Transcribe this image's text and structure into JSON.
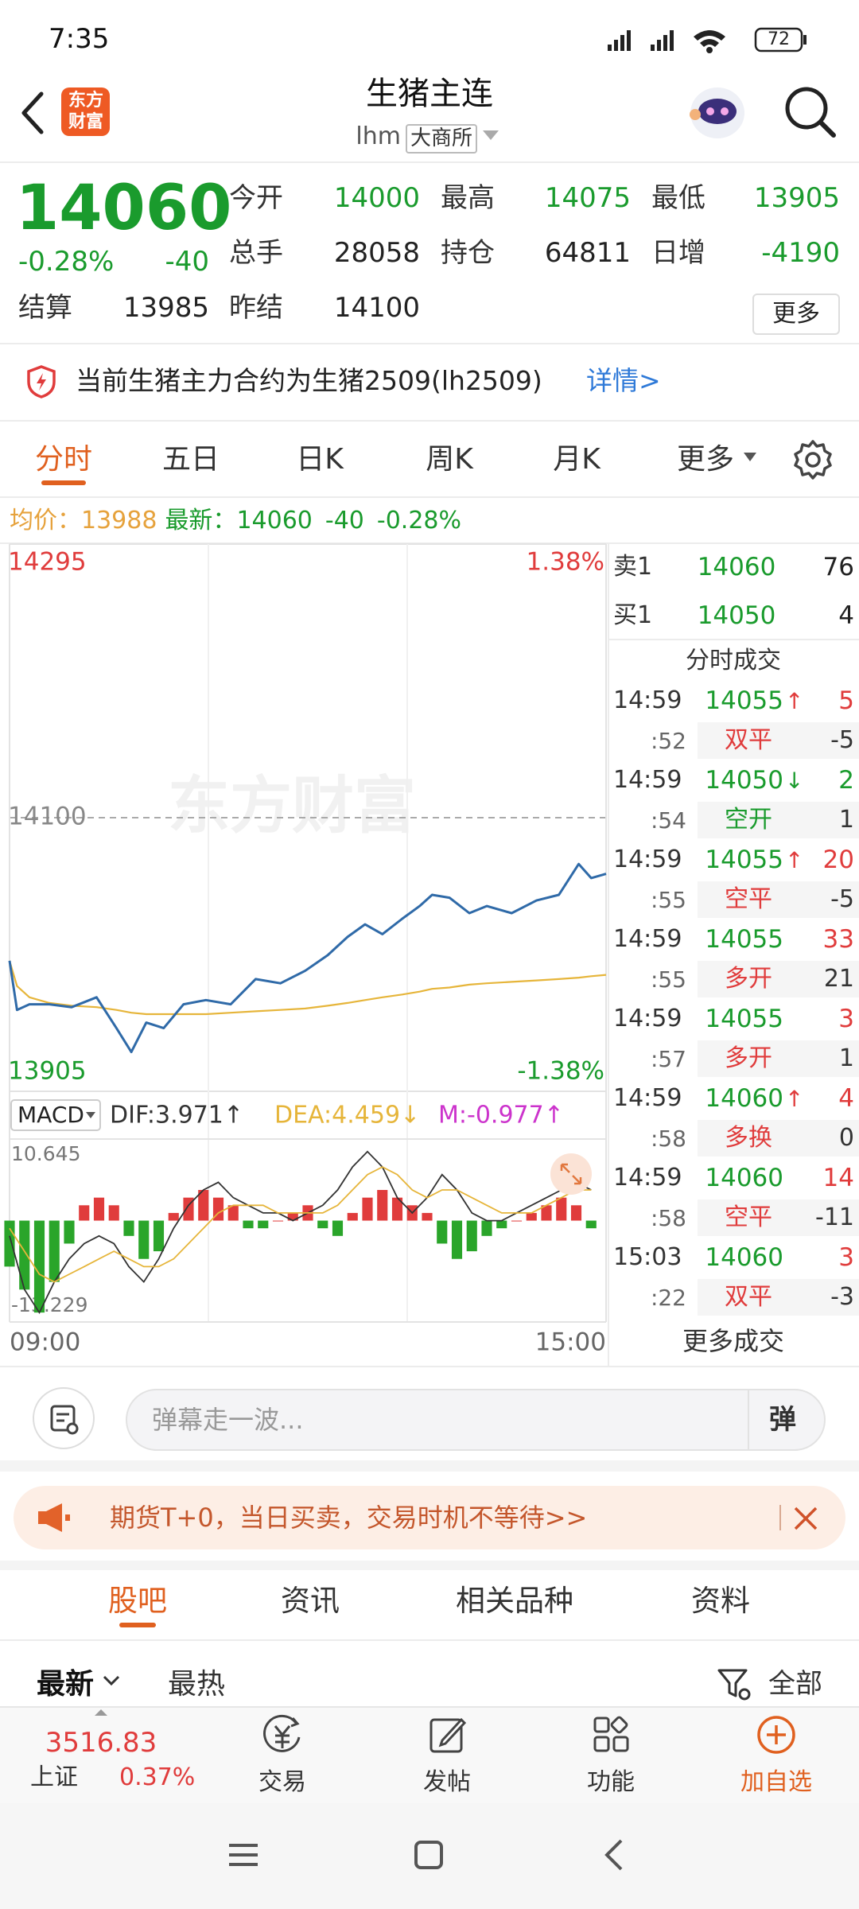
{
  "status_bar": {
    "time": "7:35",
    "battery": 72
  },
  "logo": [
    "东方",
    "财富"
  ],
  "header": {
    "title": "生猪主连",
    "code": "lhm",
    "exchange": "大商所"
  },
  "quote": {
    "price": 14060,
    "change_percent": "-0.28%",
    "change": -40,
    "fields": [
      {
        "label": "今开",
        "value": 14000,
        "color": "#1a9b2d"
      },
      {
        "label": "最高",
        "value": 14075,
        "color": "#1a9b2d"
      },
      {
        "label": "最低",
        "value": 13905,
        "color": "#1a9b2d"
      },
      {
        "label": "总手",
        "value": 28058,
        "color": "#222222"
      },
      {
        "label": "持仓",
        "value": 64811,
        "color": "#222222"
      },
      {
        "label": "日增",
        "value": -4190,
        "color": "#1a9b2d"
      },
      {
        "label": "结算",
        "value": 13985,
        "color": "#222222"
      },
      {
        "label": "昨结",
        "value": 14100,
        "color": "#222222"
      }
    ],
    "more": "更多"
  },
  "notice": {
    "text": "当前生猪主力合约为生猪2509(lh2509)",
    "link": "详情>"
  },
  "period_tabs": [
    "分时",
    "五日",
    "日K",
    "周K",
    "月K",
    "更多"
  ],
  "info_line": {
    "avg_label": "均价：",
    "avg": 13988,
    "latest_label": "最新：",
    "latest": 14060,
    "change": -40,
    "change_percent": "-0.28%"
  },
  "chart_data": [
    {
      "type": "line",
      "watermark": "东方财富",
      "x": [
        0,
        3,
        8,
        16,
        25,
        35,
        43,
        49,
        55,
        62,
        70,
        79,
        89,
        99,
        109,
        119,
        128,
        136,
        143,
        150,
        158,
        165,
        170,
        177,
        185,
        192,
        202,
        212,
        221,
        229,
        234,
        240
      ],
      "xlim": [
        0,
        240
      ],
      "xticks": [
        {
          "value": 0,
          "label": "09:00"
        },
        {
          "value": 240,
          "label": "15:00"
        }
      ],
      "ylim": [
        13905,
        14295
      ],
      "yticks": [
        13905,
        14100,
        14295
      ],
      "y2lim": [
        -1.38,
        1.38
      ],
      "y2ticks": [
        {
          "value": -1.38,
          "label": "-1.38%"
        },
        {
          "value": 1.38,
          "label": "1.38%"
        }
      ],
      "series": [
        {
          "color": "#2f6aa8",
          "values": [
            13998,
            13963,
            13967,
            13967,
            13965,
            13972,
            13950,
            13933,
            13954,
            13950,
            13967,
            13970,
            13967,
            13985,
            13982,
            13991,
            14002,
            14015,
            14024,
            14017,
            14028,
            14037,
            14045,
            14043,
            14032,
            14037,
            14032,
            14041,
            14045,
            14067,
            14057,
            14060
          ]
        },
        {
          "color": "#e6b53a",
          "values": [
            13998,
            13980,
            13972,
            13968,
            13966,
            13965,
            13963,
            13961,
            13960,
            13960,
            13960,
            13960,
            13961,
            13962,
            13963,
            13964,
            13966,
            13968,
            13970,
            13972,
            13974,
            13976,
            13978,
            13979,
            13981,
            13982,
            13983,
            13984,
            13985,
            13986,
            13987,
            13988
          ]
        }
      ]
    },
    {
      "type": "macd",
      "indicator": "MACD",
      "x": [
        0,
        6,
        12,
        18,
        24,
        30,
        36,
        42,
        48,
        54,
        60,
        66,
        72,
        78,
        84,
        90,
        96,
        102,
        108,
        114,
        120,
        126,
        132,
        138,
        144,
        150,
        156,
        162,
        168,
        174,
        180,
        186,
        192,
        198,
        204,
        210,
        216,
        222,
        228,
        234
      ],
      "xlim": [
        0,
        240
      ],
      "ylim": [
        -13.229,
        10.645
      ],
      "yticks": [
        -13.229,
        10.645
      ],
      "up_color": "#e03c3c",
      "down_color": "#2aa52a",
      "series": [
        {
          "name": "DIF:3.971↑",
          "color": "#333333",
          "values": [
            -2,
            -9,
            -12,
            -8,
            -5,
            -3,
            -2,
            -3,
            -6,
            -8,
            -5,
            -1,
            2,
            4,
            5,
            3,
            2,
            1,
            1,
            0,
            1,
            2,
            4,
            7,
            9,
            7,
            3,
            1,
            3,
            6,
            4,
            1,
            0,
            0,
            1,
            2,
            3,
            4,
            5,
            4
          ]
        },
        {
          "name": "DEA:4.459↓",
          "color": "#e6b53a",
          "values": [
            -1,
            -4,
            -7,
            -8,
            -7,
            -6,
            -5,
            -4,
            -5,
            -6,
            -6,
            -5,
            -3,
            -1,
            1,
            2,
            2,
            2,
            1,
            1,
            1,
            1,
            2,
            4,
            6,
            7,
            6,
            4,
            3,
            4,
            4,
            3,
            2,
            1,
            1,
            1,
            2,
            3,
            4,
            4
          ]
        },
        {
          "name": "M:-0.977↑",
          "color": "#cc33cc",
          "type": "bar",
          "values": [
            -6,
            -9,
            -12,
            -8,
            -3,
            2,
            3,
            2,
            -2,
            -5,
            -4,
            1,
            3,
            4,
            3,
            2,
            -1,
            -1,
            0,
            1,
            2,
            -1,
            -2,
            1,
            3,
            4,
            3,
            2,
            1,
            -3,
            -5,
            -4,
            -2,
            -1,
            0,
            1,
            2,
            3,
            2,
            -1
          ]
        }
      ]
    }
  ],
  "order_book": {
    "ask_label": "卖1",
    "ask_price": 14060,
    "ask_volume": 76,
    "bid_label": "买1",
    "bid_price": 14050,
    "bid_volume": 4
  },
  "trades_title": "分时成交",
  "trades": [
    {
      "time": "14:59",
      "price": 14055,
      "arrow": "↑",
      "volume": 5,
      "volume_color": "#e03c3c",
      "second": ":52",
      "kind": "双平",
      "kind_color": "#e03c3c",
      "change": -5
    },
    {
      "time": "14:59",
      "price": 14050,
      "arrow": "↓",
      "volume": 2,
      "volume_color": "#1a9b2d",
      "second": ":54",
      "kind": "空开",
      "kind_color": "#1a9b2d",
      "change": 1
    },
    {
      "time": "14:59",
      "price": 14055,
      "arrow": "↑",
      "volume": 20,
      "volume_color": "#e03c3c",
      "second": ":55",
      "kind": "空平",
      "kind_color": "#e03c3c",
      "change": -5
    },
    {
      "time": "14:59",
      "price": 14055,
      "volume": 33,
      "volume_color": "#e03c3c",
      "second": ":55",
      "kind": "多开",
      "kind_color": "#e03c3c",
      "change": 21
    },
    {
      "time": "14:59",
      "price": 14055,
      "volume": 3,
      "volume_color": "#e03c3c",
      "second": ":57",
      "kind": "多开",
      "kind_color": "#e03c3c",
      "change": 1
    },
    {
      "time": "14:59",
      "price": 14060,
      "arrow": "↑",
      "volume": 4,
      "volume_color": "#e03c3c",
      "second": ":58",
      "kind": "多换",
      "kind_color": "#e03c3c",
      "change": 0
    },
    {
      "time": "14:59",
      "price": 14060,
      "volume": 14,
      "volume_color": "#e03c3c",
      "second": ":58",
      "kind": "空平",
      "kind_color": "#e03c3c",
      "change": -11
    },
    {
      "time": "15:03",
      "price": 14060,
      "volume": 3,
      "volume_color": "#e03c3c",
      "second": ":22",
      "kind": "双平",
      "kind_color": "#e03c3c",
      "change": -3
    }
  ],
  "more_trades": "更多成交",
  "comment_placeholder": "弹幕走一波...",
  "danmu_button": "弹",
  "banner": "期货T+0，当日买卖，交易时机不等待>>",
  "section_tabs": [
    "股吧",
    "资讯",
    "相关品种",
    "资料"
  ],
  "sort": {
    "latest": "最新",
    "hot": "最热",
    "filter": "全部"
  },
  "bottom_bar": {
    "index_value": 3516.83,
    "index_name": "上证",
    "index_change": "0.37%",
    "items": [
      "交易",
      "发帖",
      "功能",
      "加自选"
    ]
  }
}
